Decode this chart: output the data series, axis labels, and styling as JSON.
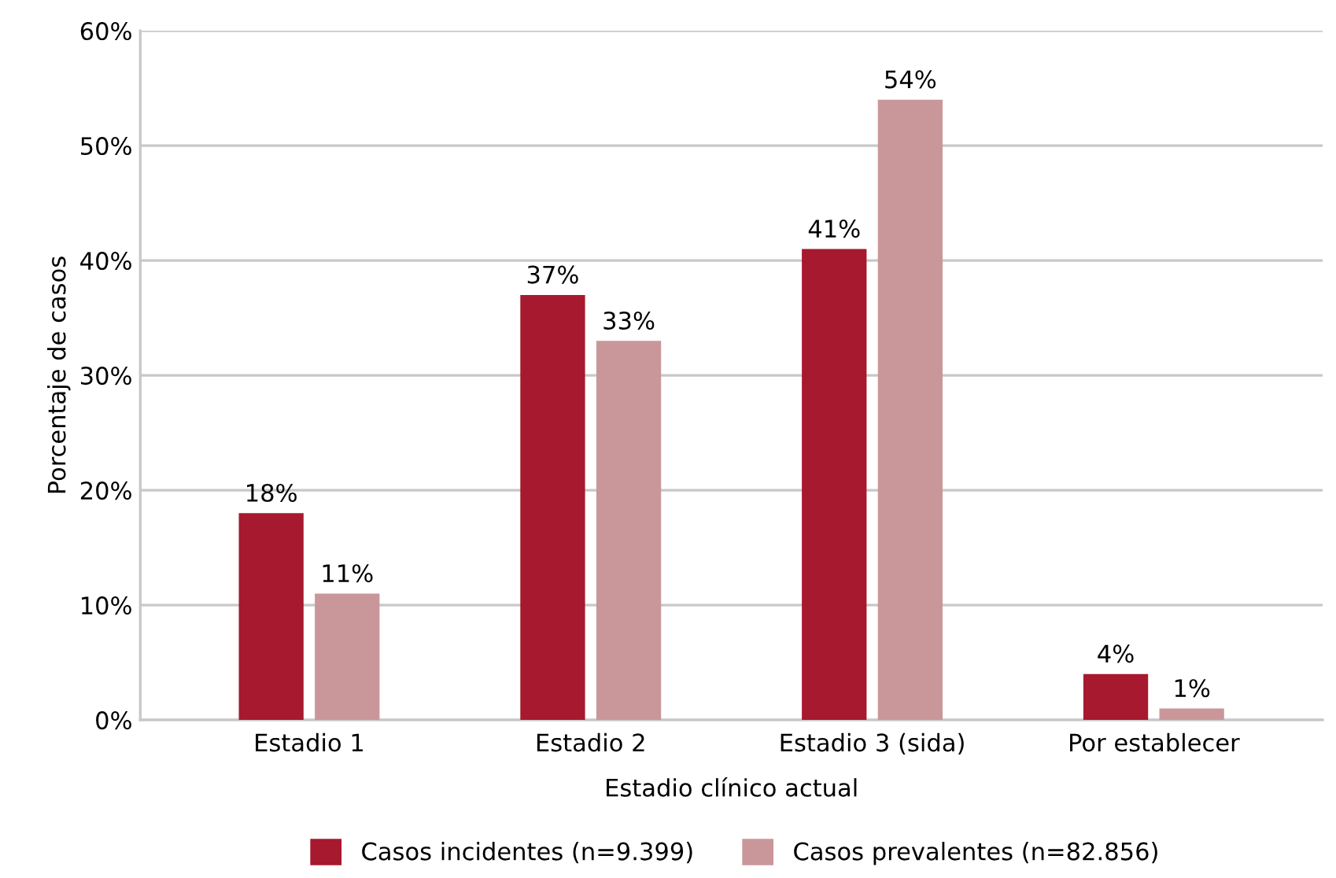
{
  "chart_data": {
    "type": "bar",
    "xlabel": "Estadio clínico actual",
    "ylabel": "Porcentaje de casos",
    "categories": [
      "Estadio 1",
      "Estadio 2",
      "Estadio 3 (sida)",
      "Por establecer"
    ],
    "series": [
      {
        "name": "Casos incidentes (n=9.399)",
        "color": "#a6192e",
        "values": [
          18,
          37,
          41,
          4
        ],
        "value_labels": [
          "18%",
          "37%",
          "41%",
          "4%"
        ]
      },
      {
        "name": "Casos prevalentes (n=82.856)",
        "color": "#c9979a",
        "values": [
          11,
          33,
          54,
          1
        ],
        "value_labels": [
          "11%",
          "33%",
          "54%",
          "1%"
        ]
      }
    ],
    "ylim": [
      0,
      60
    ],
    "yticks": [
      {
        "value": 0,
        "label": "0%"
      },
      {
        "value": 10,
        "label": "10%"
      },
      {
        "value": 20,
        "label": "20%"
      },
      {
        "value": 30,
        "label": "30%"
      },
      {
        "value": 40,
        "label": "40%"
      },
      {
        "value": 50,
        "label": "50%"
      },
      {
        "value": 60,
        "label": "60%"
      }
    ],
    "grid": "y",
    "legend": "bottom"
  }
}
